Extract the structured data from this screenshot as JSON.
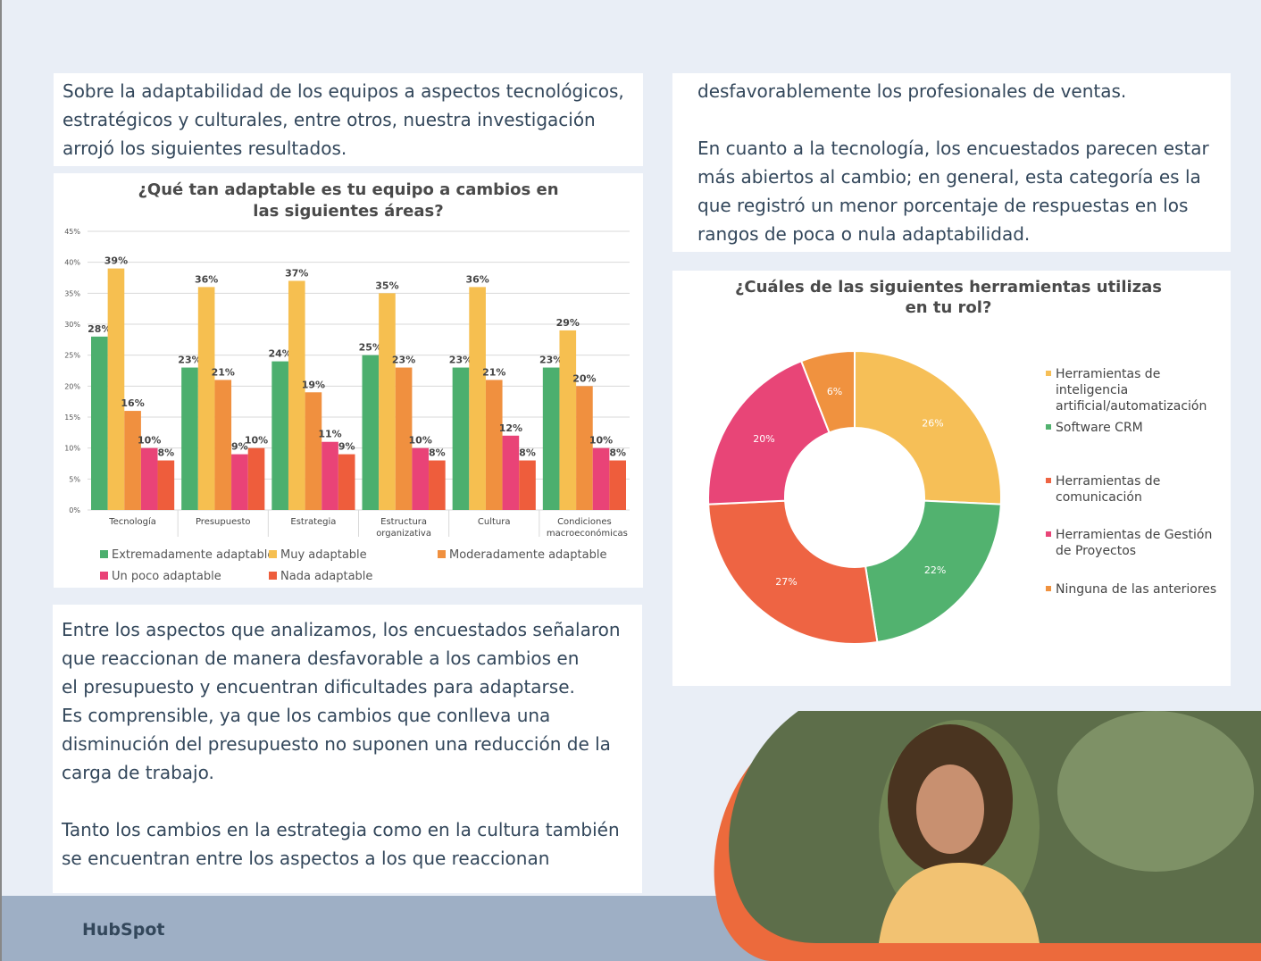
{
  "text_blocks": {
    "left_top": {
      "paragraphs": [
        [
          "Sobre la adaptabilidad de los equipos a aspectos tecnológicos,",
          "estratégicos y culturales, entre otros, nuestra investigación",
          "arrojó los siguientes resultados."
        ]
      ]
    },
    "left_bottom": {
      "paragraphs": [
        [
          "Entre los aspectos que analizamos, los encuestados señalaron",
          "que reaccionan de manera desfavorable a los cambios en",
          "el presupuesto y encuentran dificultades para adaptarse.",
          "Es comprensible, ya que los cambios que conlleva una",
          "disminución del presupuesto no suponen una reducción de la",
          "carga de trabajo."
        ],
        [
          "Tanto los cambios en la estrategia como en la cultura también",
          "se encuentran entre los aspectos a los que reaccionan"
        ]
      ]
    },
    "right_top": {
      "paragraphs": [
        [
          "desfavorablemente los profesionales de ventas."
        ],
        [
          "En cuanto a la tecnología, los encuestados parecen estar",
          "más abiertos al cambio; en general, esta categoría es la",
          "que registró un menor porcentaje de respuestas en los",
          "rangos de poca o nula adaptabilidad."
        ]
      ]
    }
  },
  "chart_data": [
    {
      "type": "bar",
      "title": "¿Qué tan adaptable es tu equipo a cambios en las siguientes áreas?",
      "categories": [
        "Tecnología",
        "Presupuesto",
        "Estrategia",
        "Estructura organizativa",
        "Cultura",
        "Condiciones macroeconómicas"
      ],
      "series": [
        {
          "name": "Extremadamente adaptable",
          "color": "#4caf6e",
          "values": [
            28,
            23,
            24,
            25,
            23,
            23
          ],
          "value_labels": [
            "28%",
            "23%",
            "24%",
            "25%",
            "23%",
            "23%"
          ]
        },
        {
          "name": "Muy adaptable",
          "color": "#f6bf50",
          "values": [
            39,
            36,
            37,
            35,
            36,
            29
          ],
          "value_labels": [
            "39%",
            "36%",
            "37%",
            "35%",
            "36%",
            "29%"
          ]
        },
        {
          "name": "Moderadamente adaptable",
          "color": "#f0903f",
          "values": [
            16,
            21,
            19,
            23,
            21,
            20
          ],
          "value_labels": [
            "16%",
            "21%",
            "19%",
            "23%",
            "21%",
            "20%"
          ]
        },
        {
          "name": "Un poco adaptable",
          "color": "#e94377",
          "values": [
            10,
            9,
            11,
            10,
            12,
            10
          ],
          "value_labels": [
            "10%",
            "9%",
            "11%",
            "10%",
            "12%",
            "10%"
          ]
        },
        {
          "name": "Nada adaptable",
          "color": "#ee5d3c",
          "values": [
            8,
            10,
            9,
            8,
            8,
            8
          ],
          "value_labels": [
            "8%",
            "10%",
            "9%",
            "8%",
            "8%",
            "8%"
          ]
        }
      ],
      "ylim": [
        0,
        45
      ],
      "yticks": [
        {
          "value": 0,
          "label": "0%"
        },
        {
          "value": 5,
          "label": "5%"
        },
        {
          "value": 10,
          "label": "10%"
        },
        {
          "value": 15,
          "label": "15%"
        },
        {
          "value": 20,
          "label": "20%"
        },
        {
          "value": 25,
          "label": "25%"
        },
        {
          "value": 30,
          "label": "30%"
        },
        {
          "value": 35,
          "label": "35%"
        },
        {
          "value": 40,
          "label": "40%"
        },
        {
          "value": 45,
          "label": "45%"
        }
      ],
      "grid": true,
      "legend": "bottom"
    },
    {
      "type": "donut",
      "title": "¿Cuáles de las siguientes herramientas utilizas en tu rol?",
      "categories": [
        "Herramientas de inteligencia artificial/automatización",
        "Software CRM",
        "Herramientas de comunicación",
        "Herramientas de Gestión de Proyectos",
        "Ninguna de las anteriores"
      ],
      "values": [
        26,
        22,
        27,
        20,
        6
      ],
      "value_labels": [
        "26%",
        "22%",
        "27%",
        "20%",
        "6%"
      ],
      "colors": [
        "#f6bf57",
        "#52b26f",
        "#ee6443",
        "#e84577",
        "#f0923f"
      ],
      "legend": "right"
    }
  ],
  "footer": {
    "logo": "HubSpot"
  }
}
